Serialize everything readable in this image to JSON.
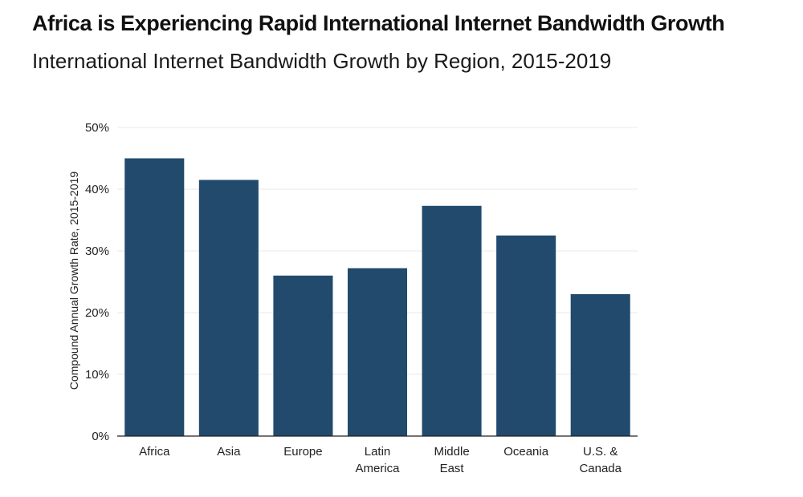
{
  "header": {
    "title": "Africa is Experiencing Rapid International Internet Bandwidth Growth",
    "subtitle": "International Internet Bandwidth Growth by Region, 2015-2019"
  },
  "chart_data": {
    "type": "bar",
    "title": "Africa is Experiencing Rapid International Internet Bandwidth Growth",
    "subtitle": "International Internet Bandwidth Growth by Region, 2015-2019",
    "categories": [
      [
        "Africa"
      ],
      [
        "Asia"
      ],
      [
        "Europe"
      ],
      [
        "Latin",
        "America"
      ],
      [
        "Middle",
        "East"
      ],
      [
        "Oceania"
      ],
      [
        "U.S. &",
        "Canada"
      ]
    ],
    "values": [
      45,
      41.5,
      26,
      27.2,
      37.3,
      32.5,
      23
    ],
    "xlabel": "",
    "ylabel": "Compound Annual Growth Rate, 2015-2019",
    "ylim": [
      0,
      50
    ],
    "yticks": [
      0,
      10,
      20,
      30,
      40,
      50
    ],
    "ytick_labels": [
      "0%",
      "10%",
      "20%",
      "30%",
      "40%",
      "50%"
    ],
    "grid": true,
    "legend": "none",
    "bar_color": "#214a6d",
    "grid_color": "#e8e8e8",
    "axis_color": "#222222"
  }
}
